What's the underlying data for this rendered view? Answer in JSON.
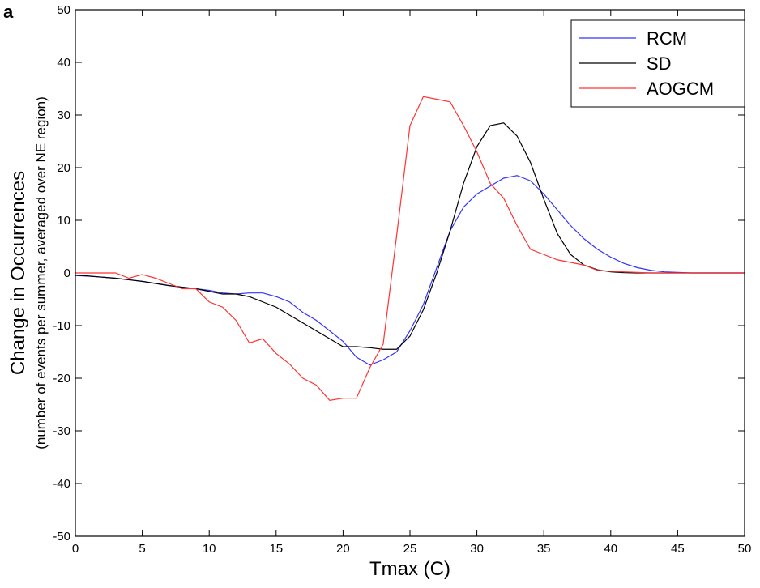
{
  "chart_data": {
    "type": "line",
    "panel_label": "a",
    "ylabel": "Change in Occurrences",
    "ylabel_sub": "(number of events per summer, averaged over NE region)",
    "xlabel": "Tmax (C)",
    "x": [
      0,
      1,
      2,
      3,
      4,
      5,
      6,
      7,
      8,
      9,
      10,
      11,
      12,
      13,
      14,
      15,
      16,
      17,
      18,
      19,
      20,
      21,
      22,
      23,
      24,
      25,
      26,
      27,
      28,
      29,
      30,
      31,
      32,
      33,
      34,
      35,
      36,
      37,
      38,
      39,
      40,
      41,
      42,
      43,
      44,
      45,
      46,
      47,
      48,
      49,
      50
    ],
    "series": [
      {
        "name": "RCM",
        "color": "#3333ff",
        "values": [
          -0.5,
          -0.6,
          -0.8,
          -1,
          -1.3,
          -1.6,
          -2,
          -2.4,
          -2.7,
          -3,
          -3.3,
          -3.8,
          -4,
          -3.8,
          -3.8,
          -4.5,
          -5.5,
          -7.5,
          -9,
          -11,
          -13,
          -16,
          -17.5,
          -16.5,
          -15,
          -11,
          -6,
          1,
          8,
          12.5,
          15,
          16.5,
          18,
          18.5,
          17.5,
          15,
          12,
          9,
          6.5,
          4.5,
          3,
          1.8,
          1,
          0.5,
          0.2,
          0.1,
          0,
          0,
          0,
          0,
          0
        ]
      },
      {
        "name": "SD",
        "color": "#000000",
        "values": [
          -0.4,
          -0.6,
          -0.8,
          -1,
          -1.3,
          -1.6,
          -2,
          -2.4,
          -2.7,
          -3,
          -3.5,
          -4,
          -4,
          -4.5,
          -5.5,
          -6.5,
          -8,
          -9.5,
          -11,
          -12.5,
          -14,
          -14,
          -14.2,
          -14.5,
          -14.5,
          -12,
          -7,
          0,
          8,
          17,
          24,
          28,
          28.5,
          26,
          21,
          14,
          7.5,
          3.5,
          1.5,
          0.6,
          0.2,
          0.05,
          0,
          0,
          0,
          0,
          0,
          0,
          0,
          0,
          0
        ]
      },
      {
        "name": "AOGCM",
        "color": "#ff3333",
        "values": [
          0,
          0,
          0,
          0,
          -1,
          -0.3,
          -1,
          -2,
          -3,
          -3,
          -5.5,
          -6.5,
          -9,
          -13.3,
          -12.5,
          -15.3,
          -17.3,
          -20,
          -21.3,
          -24.2,
          -23.8,
          -23.8,
          -18,
          -13.5,
          7,
          28,
          33.5,
          33,
          32.5,
          28,
          23,
          17,
          14.2,
          9,
          4.5,
          3.5,
          2.5,
          2,
          1.5,
          0.5,
          0.3,
          0.2,
          0.1,
          0,
          0,
          0,
          0,
          0,
          0,
          0,
          0
        ]
      }
    ],
    "xlim": [
      0,
      50
    ],
    "xticks": [
      0,
      5,
      10,
      15,
      20,
      25,
      30,
      35,
      40,
      45,
      50
    ],
    "ylim": [
      -50,
      50
    ],
    "yticks": [
      -50,
      -40,
      -30,
      -20,
      -10,
      0,
      10,
      20,
      30,
      40,
      50
    ],
    "legend": "upper right"
  }
}
